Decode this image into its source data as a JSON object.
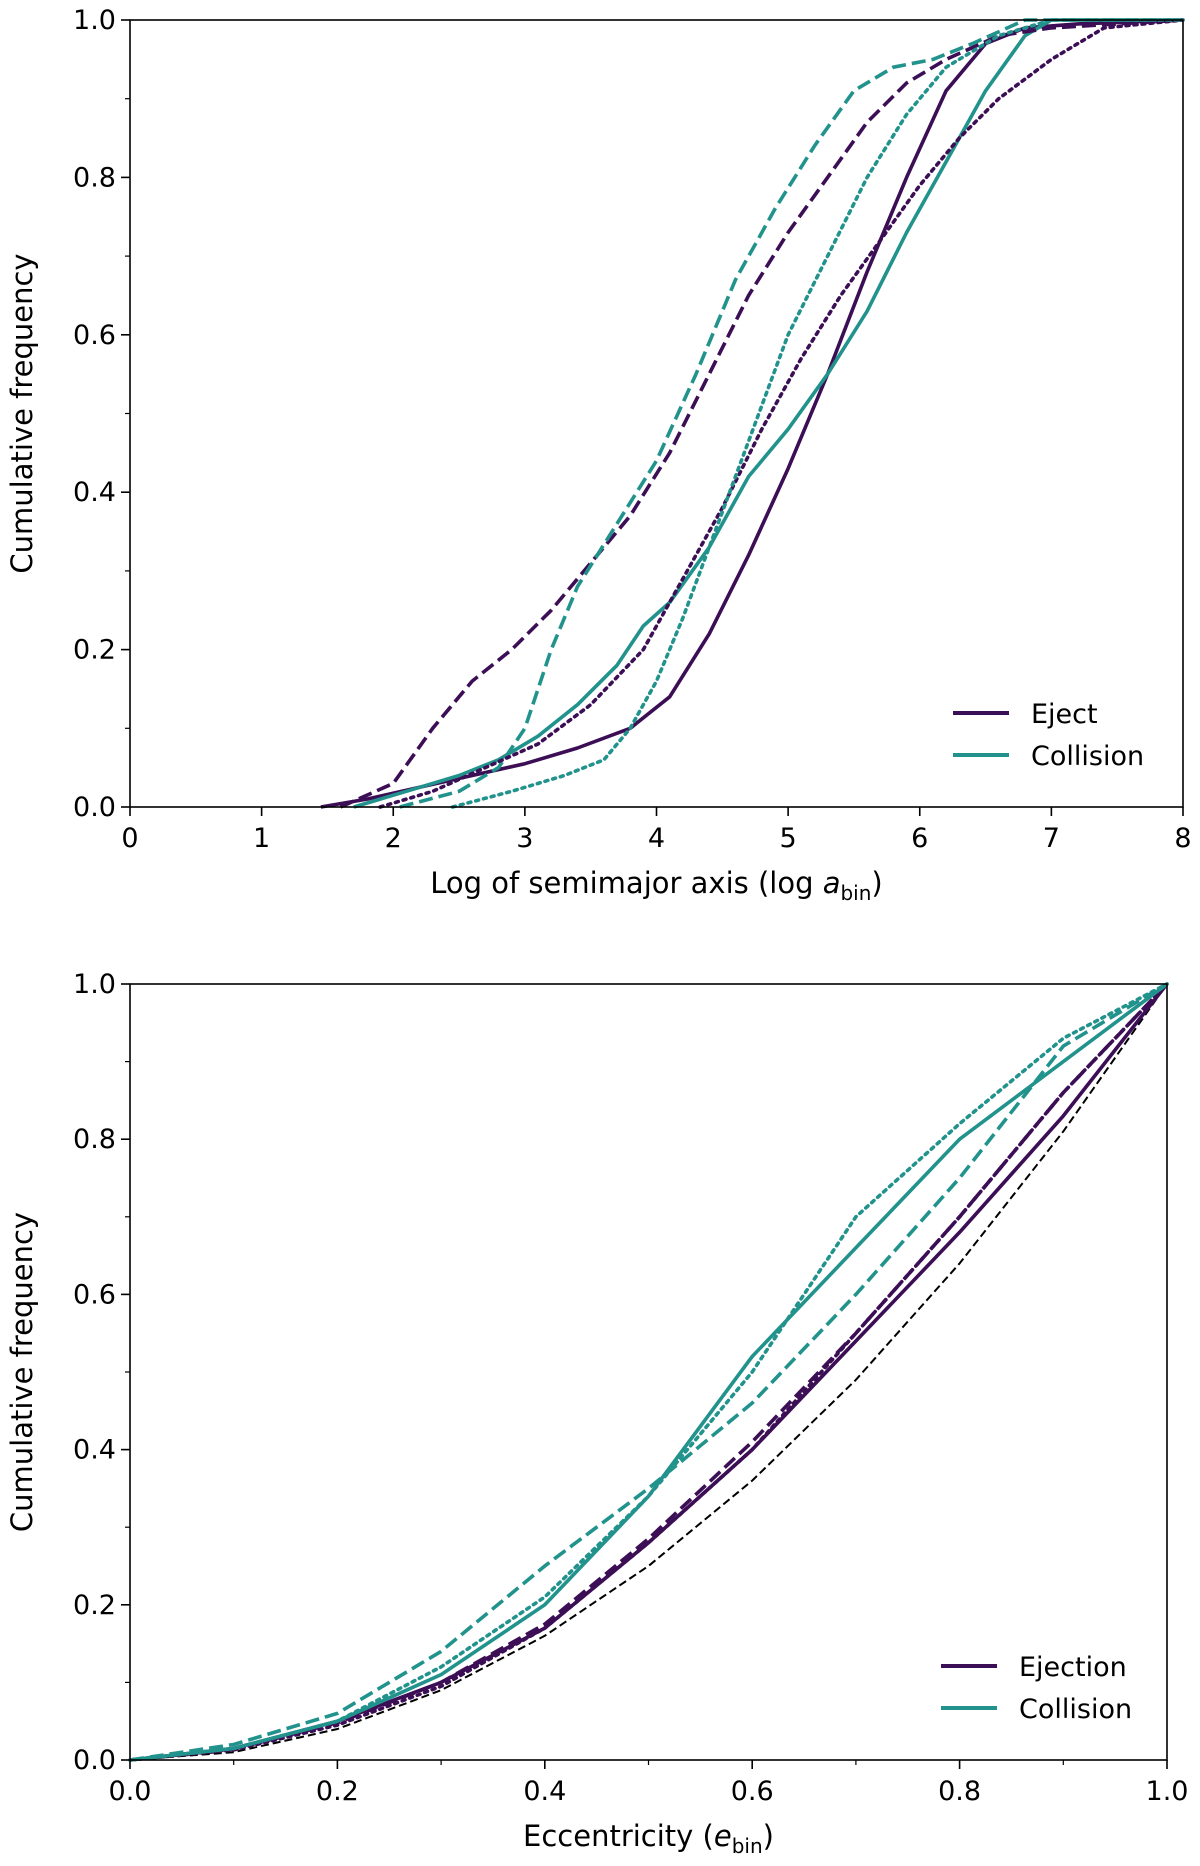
{
  "colors": {
    "eject": "#3c0e55",
    "collision": "#22938c",
    "reference": "#000000"
  },
  "chart_data": [
    {
      "type": "line",
      "xlabel": "Log of semimajor axis (log a",
      "xlabel_sub": "bin",
      "xlabel_suffix": ")",
      "ylabel": "Cumulative frequency",
      "xlim": [
        0,
        8
      ],
      "ylim": [
        0,
        1
      ],
      "xticks": [
        "0",
        "1",
        "2",
        "3",
        "4",
        "5",
        "6",
        "7",
        "8"
      ],
      "yticks": [
        "0.0",
        "0.2",
        "0.4",
        "0.6",
        "0.8",
        "1.0"
      ],
      "legend_position": "bottom-right",
      "legend": [
        {
          "label": "Eject",
          "color": "eject"
        },
        {
          "label": "Collision",
          "color": "collision"
        }
      ],
      "series": [
        {
          "color": "eject",
          "style": "solid",
          "x": [
            1.45,
            1.8,
            2.2,
            2.6,
            3.0,
            3.4,
            3.8,
            4.1,
            4.4,
            4.7,
            5.0,
            5.3,
            5.6,
            5.9,
            6.2,
            6.5,
            6.8,
            7.2,
            8.0
          ],
          "y": [
            0.0,
            0.01,
            0.025,
            0.04,
            0.055,
            0.075,
            0.1,
            0.14,
            0.22,
            0.32,
            0.43,
            0.55,
            0.68,
            0.8,
            0.91,
            0.97,
            0.99,
            0.995,
            1.0
          ]
        },
        {
          "color": "collision",
          "style": "solid",
          "x": [
            1.7,
            2.1,
            2.5,
            2.8,
            3.1,
            3.4,
            3.7,
            3.9,
            4.1,
            4.4,
            4.7,
            5.0,
            5.3,
            5.6,
            5.9,
            6.2,
            6.5,
            6.8,
            7.0,
            8.0
          ],
          "y": [
            0.0,
            0.02,
            0.04,
            0.06,
            0.09,
            0.13,
            0.18,
            0.23,
            0.26,
            0.33,
            0.42,
            0.48,
            0.55,
            0.63,
            0.73,
            0.82,
            0.91,
            0.98,
            1.0,
            1.0
          ]
        },
        {
          "color": "eject",
          "style": "dashed",
          "x": [
            1.6,
            2.0,
            2.3,
            2.6,
            2.9,
            3.2,
            3.5,
            3.8,
            4.1,
            4.4,
            4.7,
            5.0,
            5.3,
            5.6,
            5.9,
            6.2,
            6.6,
            7.0,
            8.0
          ],
          "y": [
            0.0,
            0.03,
            0.1,
            0.16,
            0.2,
            0.25,
            0.31,
            0.37,
            0.45,
            0.55,
            0.65,
            0.73,
            0.8,
            0.87,
            0.92,
            0.95,
            0.98,
            0.99,
            1.0
          ]
        },
        {
          "color": "collision",
          "style": "dashed",
          "x": [
            2.05,
            2.5,
            2.8,
            3.0,
            3.2,
            3.4,
            3.7,
            4.0,
            4.3,
            4.6,
            4.9,
            5.2,
            5.5,
            5.8,
            6.1,
            6.4,
            6.8,
            8.0
          ],
          "y": [
            0.0,
            0.02,
            0.05,
            0.1,
            0.2,
            0.28,
            0.36,
            0.44,
            0.55,
            0.67,
            0.76,
            0.84,
            0.91,
            0.94,
            0.95,
            0.97,
            1.0,
            1.0
          ]
        },
        {
          "color": "eject",
          "style": "dotted",
          "x": [
            1.9,
            2.3,
            2.7,
            3.1,
            3.5,
            3.9,
            4.2,
            4.5,
            4.8,
            5.1,
            5.4,
            5.7,
            6.0,
            6.3,
            6.6,
            7.0,
            7.4,
            8.0
          ],
          "y": [
            0.0,
            0.02,
            0.05,
            0.08,
            0.13,
            0.2,
            0.29,
            0.38,
            0.48,
            0.57,
            0.65,
            0.72,
            0.79,
            0.85,
            0.9,
            0.95,
            0.99,
            1.0
          ]
        },
        {
          "color": "collision",
          "style": "dotted",
          "x": [
            2.45,
            2.9,
            3.3,
            3.6,
            3.8,
            4.0,
            4.2,
            4.4,
            4.6,
            4.8,
            5.0,
            5.3,
            5.6,
            5.9,
            6.2,
            6.6,
            7.0,
            8.0
          ],
          "y": [
            0.0,
            0.02,
            0.04,
            0.06,
            0.1,
            0.16,
            0.24,
            0.33,
            0.42,
            0.51,
            0.6,
            0.7,
            0.8,
            0.88,
            0.94,
            0.98,
            1.0,
            1.0
          ]
        }
      ]
    },
    {
      "type": "line",
      "xlabel": "Eccentricity (e",
      "xlabel_sub": "bin",
      "xlabel_suffix": ")",
      "ylabel": "Cumulative frequency",
      "xlim": [
        0,
        1
      ],
      "ylim": [
        0,
        1
      ],
      "xticks": [
        "0.0",
        "0.2",
        "0.4",
        "0.6",
        "0.8",
        "1.0"
      ],
      "yticks": [
        "0.0",
        "0.2",
        "0.4",
        "0.6",
        "0.8",
        "1.0"
      ],
      "legend_position": "bottom-right",
      "legend": [
        {
          "label": "Ejection",
          "color": "eject"
        },
        {
          "label": "Collision",
          "color": "collision"
        }
      ],
      "series": [
        {
          "color": "reference",
          "style": "thin-dashed",
          "x": [
            0.0,
            0.1,
            0.2,
            0.3,
            0.4,
            0.5,
            0.6,
            0.7,
            0.8,
            0.9,
            1.0
          ],
          "y": [
            0.0,
            0.01,
            0.04,
            0.09,
            0.16,
            0.25,
            0.36,
            0.49,
            0.64,
            0.81,
            1.0
          ]
        },
        {
          "color": "eject",
          "style": "solid",
          "x": [
            0.0,
            0.1,
            0.2,
            0.3,
            0.4,
            0.5,
            0.6,
            0.7,
            0.8,
            0.9,
            1.0
          ],
          "y": [
            0.0,
            0.015,
            0.05,
            0.1,
            0.17,
            0.28,
            0.4,
            0.54,
            0.68,
            0.83,
            1.0
          ]
        },
        {
          "color": "eject",
          "style": "dashed",
          "x": [
            0.0,
            0.1,
            0.2,
            0.3,
            0.4,
            0.5,
            0.6,
            0.7,
            0.8,
            0.9,
            1.0
          ],
          "y": [
            0.0,
            0.014,
            0.048,
            0.1,
            0.175,
            0.285,
            0.41,
            0.55,
            0.7,
            0.86,
            1.0
          ]
        },
        {
          "color": "eject",
          "style": "dotted",
          "x": [
            0.0,
            0.1,
            0.2,
            0.3,
            0.4,
            0.5,
            0.6,
            0.7,
            0.8,
            0.9,
            1.0
          ],
          "y": [
            0.0,
            0.013,
            0.045,
            0.095,
            0.17,
            0.28,
            0.4,
            0.55,
            0.7,
            0.86,
            1.0
          ]
        },
        {
          "color": "collision",
          "style": "solid",
          "x": [
            0.0,
            0.1,
            0.2,
            0.3,
            0.4,
            0.5,
            0.6,
            0.7,
            0.8,
            0.9,
            1.0
          ],
          "y": [
            0.0,
            0.015,
            0.05,
            0.11,
            0.2,
            0.34,
            0.52,
            0.66,
            0.8,
            0.9,
            1.0
          ]
        },
        {
          "color": "collision",
          "style": "dashed",
          "x": [
            0.0,
            0.1,
            0.2,
            0.3,
            0.4,
            0.5,
            0.6,
            0.7,
            0.8,
            0.9,
            1.0
          ],
          "y": [
            0.0,
            0.02,
            0.06,
            0.14,
            0.25,
            0.35,
            0.46,
            0.6,
            0.75,
            0.92,
            1.0
          ]
        },
        {
          "color": "collision",
          "style": "dotted",
          "x": [
            0.0,
            0.1,
            0.2,
            0.3,
            0.4,
            0.5,
            0.6,
            0.7,
            0.8,
            0.9,
            1.0
          ],
          "y": [
            0.0,
            0.015,
            0.05,
            0.12,
            0.21,
            0.34,
            0.5,
            0.7,
            0.82,
            0.93,
            1.0
          ]
        }
      ]
    }
  ]
}
